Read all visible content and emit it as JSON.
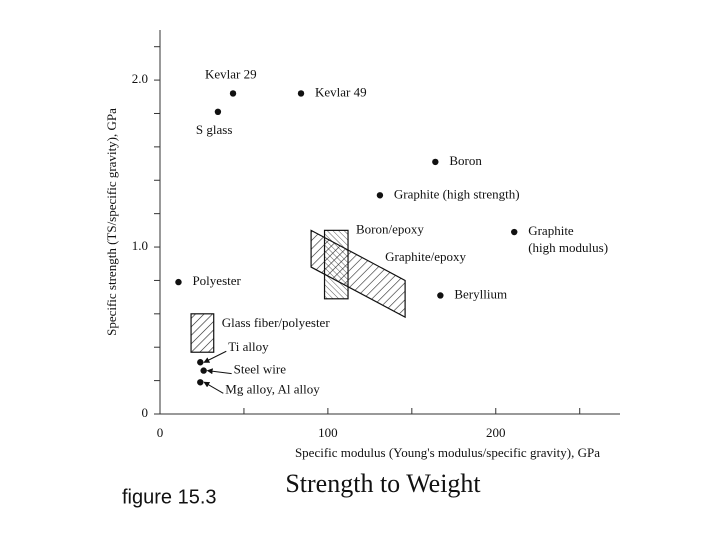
{
  "chart_data": {
    "type": "scatter",
    "xlabel": "Specific modulus (Young's modulus/specific gravity), GPa",
    "ylabel": "Specific strength (TS/specific gravity), GPa",
    "labels": [
      "Kevlar 29",
      "Kevlar 49",
      "S glass",
      "Boron",
      "Graphite (high strength)",
      [
        "Graphite",
        "(high modulus)"
      ],
      "Polyester",
      "Beryllium",
      "Ti alloy",
      "Steel wire",
      "Mg alloy, Al alloy"
    ],
    "x": [
      43.5,
      84,
      34.5,
      164,
      131,
      211,
      11,
      167,
      24,
      26,
      24
    ],
    "values": [
      1.92,
      1.92,
      1.81,
      1.51,
      1.31,
      1.09,
      0.79,
      0.71,
      0.31,
      0.26,
      0.19
    ],
    "color": "#111111",
    "regions": [
      {
        "name": "Boron/epoxy",
        "x": [
          98,
          112
        ],
        "y": [
          0.69,
          1.1
        ]
      },
      {
        "name": "Graphite/epoxy",
        "x": [
          90,
          146,
          146,
          90
        ],
        "y": [
          1.1,
          0.8,
          0.58,
          0.88
        ]
      },
      {
        "name": "Glass fiber/polyester",
        "x": [
          18.5,
          32
        ],
        "y": [
          0.37,
          0.6
        ]
      }
    ],
    "xlim": [
      0,
      274
    ],
    "ylim": [
      0,
      2.3
    ],
    "xticks": [
      0,
      100,
      200
    ],
    "xminor_ticks": [
      50,
      150,
      250
    ],
    "yticks": [
      0,
      {
        "value": 1,
        "label": "1.0"
      },
      {
        "value": 2,
        "label": "2.0"
      }
    ],
    "yminor_ticks": [
      0.2,
      0.4,
      0.6,
      0.8,
      1.2,
      1.4,
      1.6,
      1.8,
      2.2
    ]
  },
  "caption": "figure 15.3",
  "slide_title": "Strength to Weight"
}
